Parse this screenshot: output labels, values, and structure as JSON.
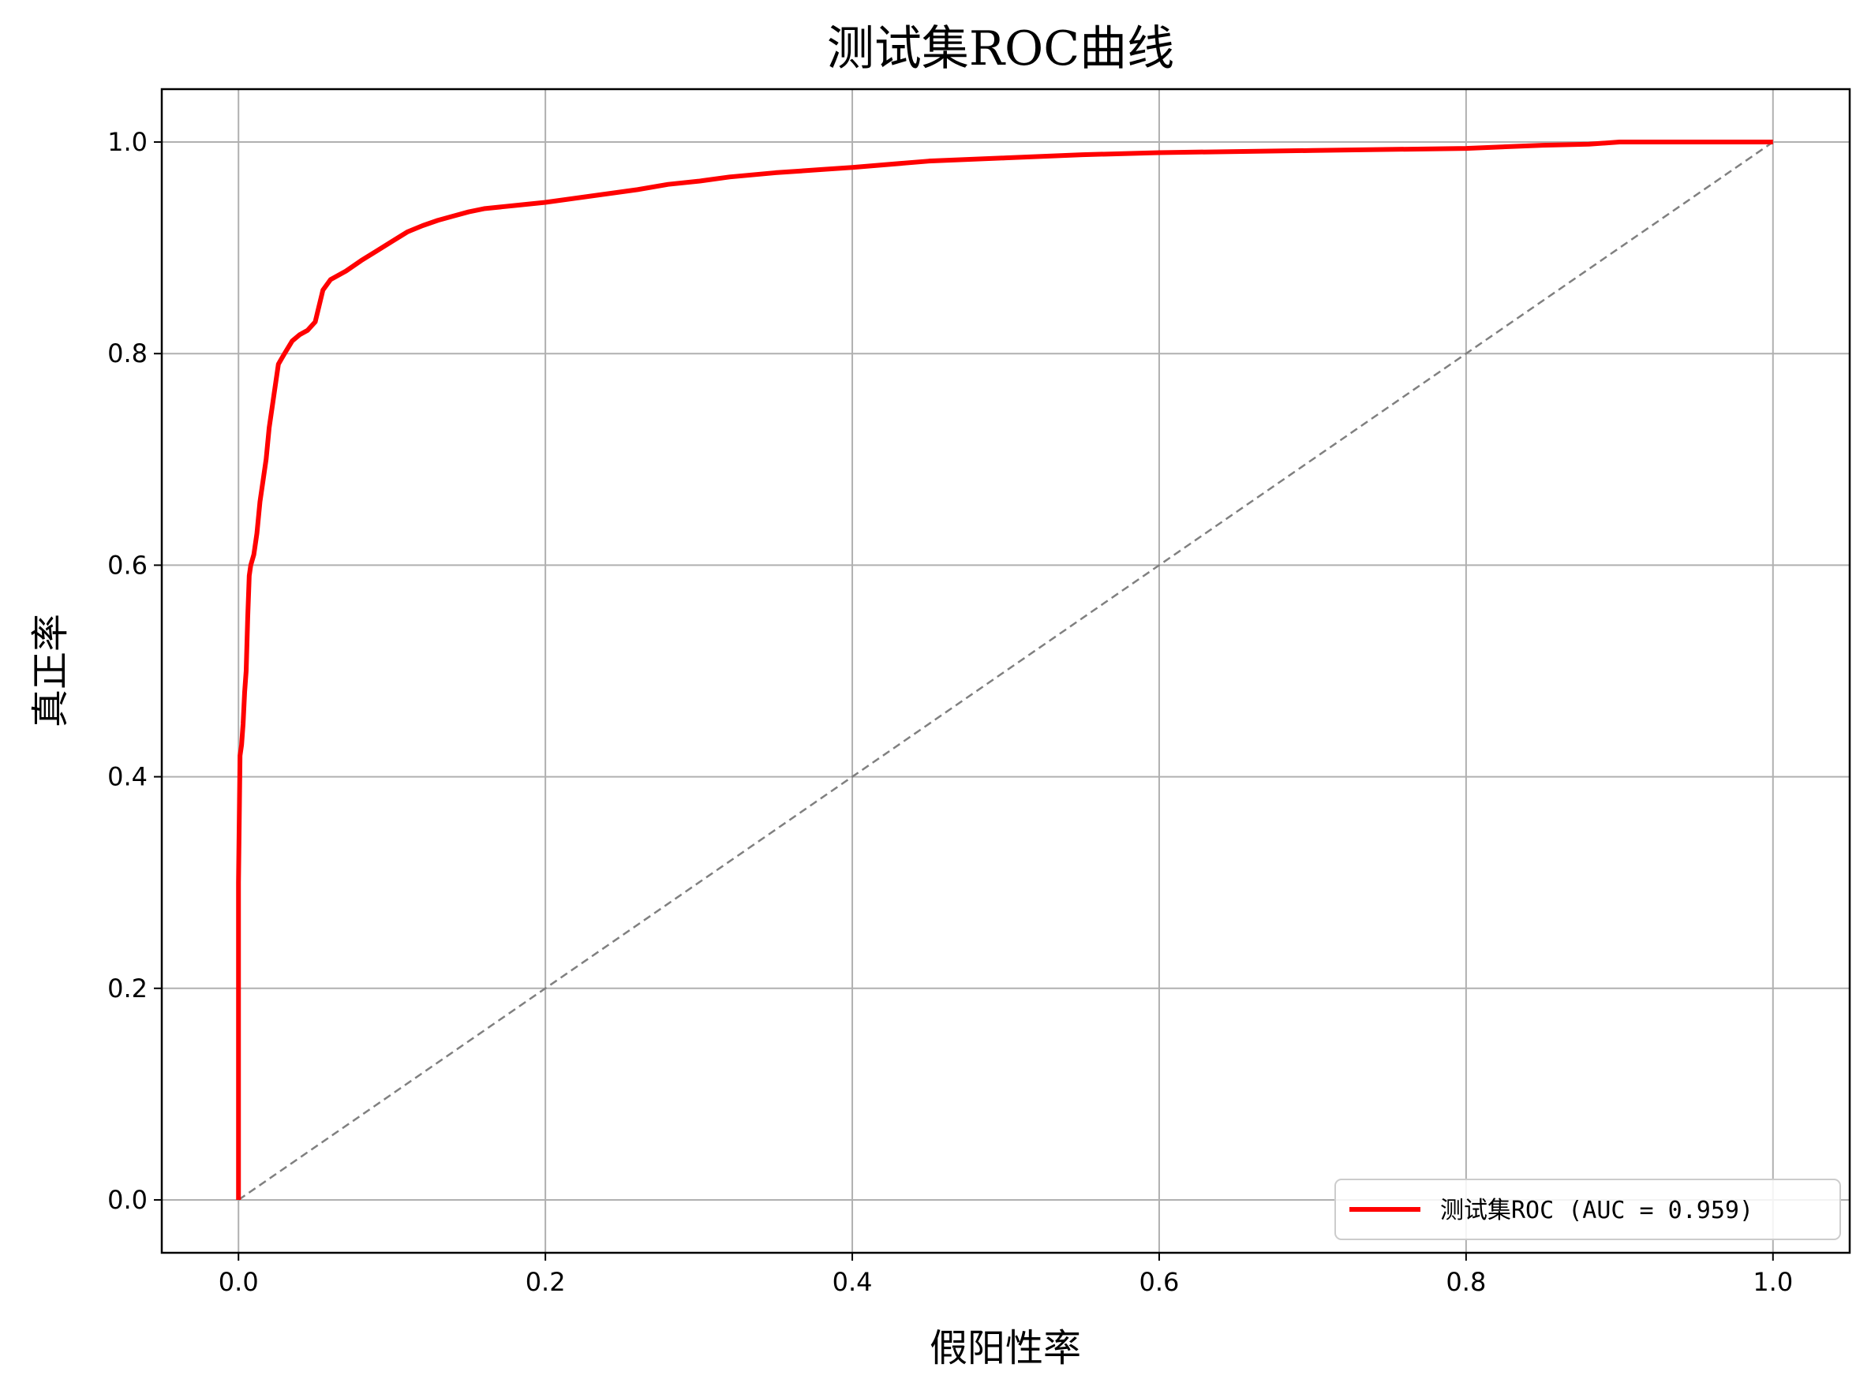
{
  "chart_data": {
    "type": "line",
    "title": "测试集ROC曲线",
    "xlabel": "假阳性率",
    "ylabel": "真正率",
    "xlim": [
      -0.05,
      1.05
    ],
    "ylim": [
      -0.05,
      1.05
    ],
    "xticks": [
      "0.0",
      "0.2",
      "0.4",
      "0.6",
      "0.8",
      "1.0"
    ],
    "yticks": [
      "0.0",
      "0.2",
      "0.4",
      "0.6",
      "0.8",
      "1.0"
    ],
    "grid": true,
    "legend_position": "lower-right",
    "series": [
      {
        "name": "测试集ROC (AUC = 0.959)",
        "color": "#ff0000",
        "x": [
          0.0,
          0.0,
          0.001,
          0.002,
          0.003,
          0.004,
          0.005,
          0.006,
          0.007,
          0.008,
          0.01,
          0.012,
          0.014,
          0.016,
          0.018,
          0.02,
          0.022,
          0.024,
          0.026,
          0.028,
          0.03,
          0.035,
          0.04,
          0.045,
          0.05,
          0.055,
          0.06,
          0.07,
          0.08,
          0.09,
          0.1,
          0.11,
          0.12,
          0.13,
          0.14,
          0.15,
          0.16,
          0.18,
          0.2,
          0.22,
          0.24,
          0.26,
          0.28,
          0.3,
          0.32,
          0.35,
          0.38,
          0.4,
          0.45,
          0.5,
          0.55,
          0.6,
          0.7,
          0.8,
          0.85,
          0.88,
          0.9,
          0.95,
          1.0
        ],
        "y": [
          0.0,
          0.3,
          0.42,
          0.43,
          0.45,
          0.48,
          0.5,
          0.55,
          0.59,
          0.6,
          0.61,
          0.63,
          0.66,
          0.68,
          0.7,
          0.73,
          0.75,
          0.77,
          0.79,
          0.795,
          0.8,
          0.812,
          0.818,
          0.822,
          0.83,
          0.86,
          0.87,
          0.878,
          0.888,
          0.897,
          0.906,
          0.915,
          0.921,
          0.926,
          0.93,
          0.934,
          0.937,
          0.94,
          0.943,
          0.947,
          0.951,
          0.955,
          0.96,
          0.963,
          0.967,
          0.971,
          0.974,
          0.976,
          0.982,
          0.985,
          0.988,
          0.99,
          0.992,
          0.994,
          0.997,
          0.998,
          1.0,
          1.0,
          1.0
        ]
      },
      {
        "name": "",
        "color": "#808080",
        "style": "dashed",
        "x": [
          0,
          1
        ],
        "y": [
          0,
          1
        ]
      }
    ]
  }
}
